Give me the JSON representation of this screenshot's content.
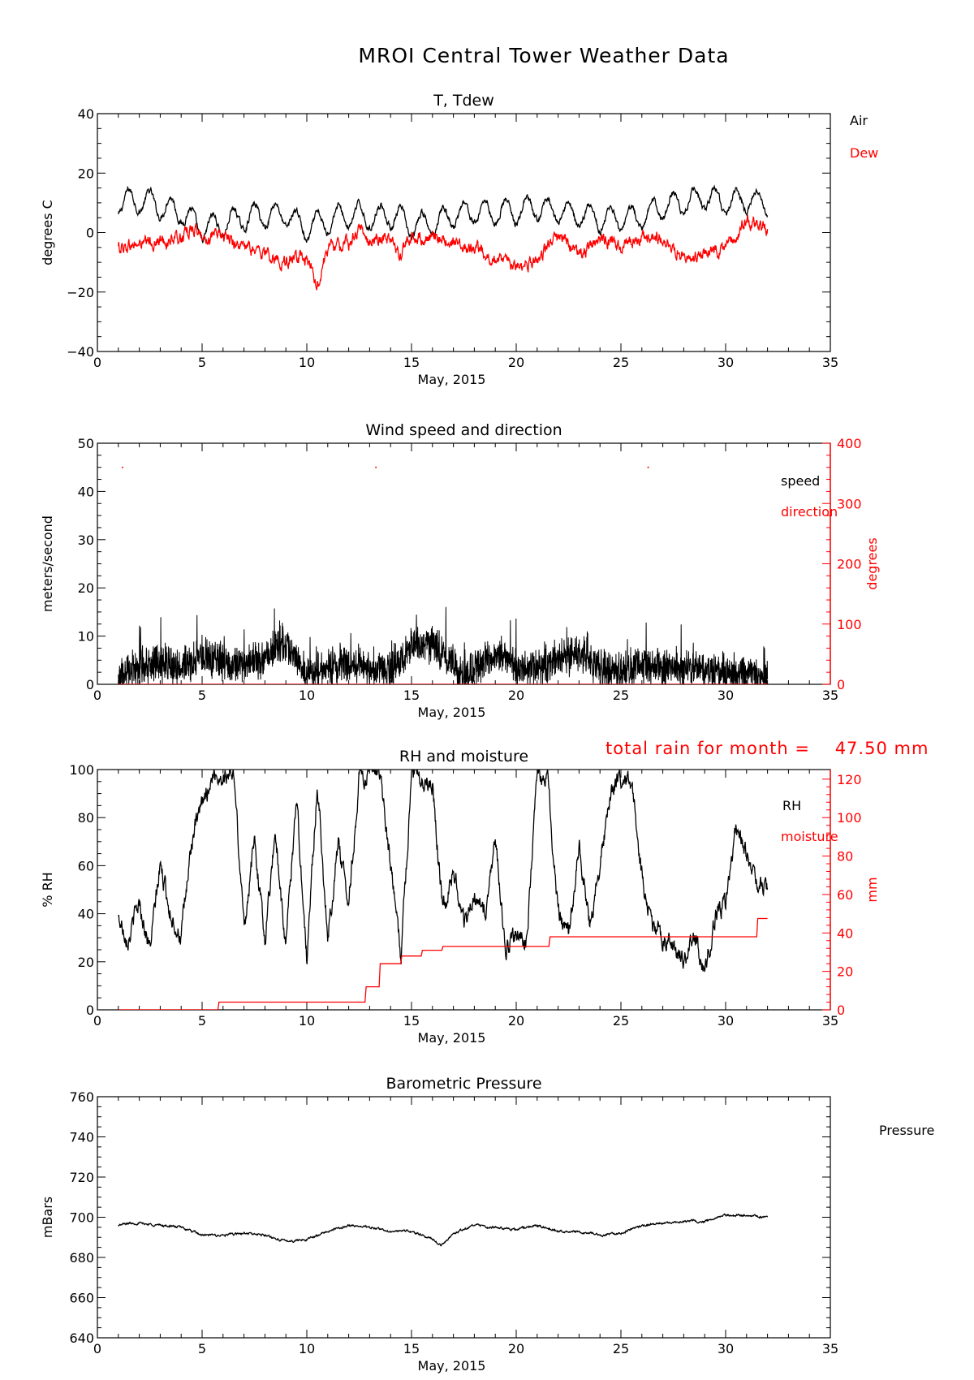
{
  "page": {
    "title": "MROI Central Tower Weather Data"
  },
  "colors": {
    "primary": "#000000",
    "secondary": "#ff0000"
  },
  "chart_data": [
    {
      "type": "line",
      "title": "T, Tdew",
      "xlabel": "May, 2015",
      "ylabel": "degrees C",
      "xlim": [
        0,
        35
      ],
      "ylim": [
        -40,
        40
      ],
      "xticks": [
        "0",
        "5",
        "10",
        "15",
        "20",
        "25",
        "30",
        "35"
      ],
      "yticks": [
        "-40",
        "-20",
        "0",
        "20",
        "40"
      ],
      "legend": [
        "Air",
        "Dew"
      ],
      "series": [
        {
          "name": "Air",
          "color": "#000000",
          "axis": "left",
          "kind": "daily",
          "x": [
            1,
            2,
            3,
            4,
            5,
            6,
            7,
            8,
            9,
            10,
            11,
            12,
            13,
            14,
            15,
            16,
            17,
            18,
            19,
            20,
            21,
            22,
            23,
            24,
            25,
            26,
            27,
            28,
            29,
            30,
            31,
            32
          ],
          "values": [
            10,
            11,
            9,
            7,
            1,
            3,
            5,
            6,
            6,
            1,
            4,
            6,
            5,
            6,
            2,
            3,
            6,
            7,
            7,
            7,
            8,
            7,
            6,
            5,
            4,
            5,
            9,
            10,
            12,
            10,
            11,
            10
          ],
          "amplitude": 4,
          "noise": 0.8
        },
        {
          "name": "Dew",
          "color": "#ff0000",
          "axis": "left",
          "kind": "noise",
          "x": [
            1,
            2,
            3,
            4,
            4.5,
            5,
            6,
            7,
            8,
            9,
            10,
            10.5,
            11,
            12,
            12.5,
            13,
            14,
            14.5,
            15,
            16,
            17,
            18,
            19,
            20,
            21,
            22,
            23,
            24,
            25,
            26,
            27,
            28,
            29,
            30,
            31,
            32
          ],
          "values": [
            -5,
            -4,
            -3,
            -2,
            2,
            -2,
            -1,
            -5,
            -7,
            -10,
            -9,
            -18,
            -5,
            -4,
            1,
            -2,
            -2,
            -8,
            -2,
            -1,
            -3,
            -6,
            -8,
            -12,
            -10,
            0,
            -7,
            -3,
            -4,
            -2,
            -2,
            -9,
            -7,
            -5,
            4,
            1
          ],
          "noise": 1.6
        }
      ]
    },
    {
      "type": "line",
      "title": "Wind speed and direction",
      "xlabel": "May, 2015",
      "ylabel": "meters/second",
      "ylabel_right": "degrees",
      "xlim": [
        0,
        35
      ],
      "ylim": [
        0,
        50
      ],
      "ylim_right": [
        0,
        400
      ],
      "xticks": [
        "0",
        "5",
        "10",
        "15",
        "20",
        "25",
        "30",
        "35"
      ],
      "yticks": [
        "0",
        "10",
        "20",
        "30",
        "40",
        "50"
      ],
      "yticks_right": [
        "0",
        "100",
        "200",
        "300",
        "400"
      ],
      "legend": [
        "speed",
        "direction"
      ],
      "series": [
        {
          "name": "speed",
          "color": "#000000",
          "axis": "left",
          "kind": "wind",
          "x": [
            1,
            2,
            3,
            4,
            5,
            6,
            7,
            8,
            8.8,
            9.5,
            10,
            11,
            12,
            13,
            14,
            15,
            16,
            17,
            17.5,
            18,
            19,
            20,
            21,
            22,
            23,
            24,
            25,
            26,
            27,
            28,
            29,
            30,
            31,
            32
          ],
          "values": [
            1,
            3,
            4,
            3,
            5,
            4,
            4,
            5,
            8,
            5,
            1,
            3,
            4,
            3,
            3,
            8,
            8,
            4,
            0,
            3,
            6,
            3,
            3,
            5,
            6,
            3,
            2,
            4,
            3,
            3,
            3,
            2,
            2,
            1
          ],
          "noise": 3
        },
        {
          "name": "direction",
          "color": "#ff0000",
          "axis": "right",
          "kind": "flat",
          "x": [
            1,
            32
          ],
          "values": [
            0,
            0
          ],
          "noise": 0
        }
      ],
      "markers": {
        "color": "#ff0000",
        "axis": "right",
        "x": [
          1.2,
          13.3,
          26.3
        ],
        "values": [
          360,
          360,
          360
        ]
      }
    },
    {
      "type": "line",
      "title": "RH and moisture",
      "xlabel": "May, 2015",
      "ylabel": "% RH",
      "ylabel_right": "mm",
      "xlim": [
        0,
        35
      ],
      "ylim": [
        0,
        100
      ],
      "ylim_right": [
        0,
        125
      ],
      "xticks": [
        "0",
        "5",
        "10",
        "15",
        "20",
        "25",
        "30",
        "35"
      ],
      "yticks": [
        "0",
        "20",
        "40",
        "60",
        "80",
        "100"
      ],
      "yticks_right": [
        "0",
        "20",
        "40",
        "60",
        "80",
        "100",
        "120"
      ],
      "legend": [
        "RH",
        "moisture"
      ],
      "annotation": "total rain for month =    47.50 mm",
      "series": [
        {
          "name": "RH",
          "color": "#000000",
          "axis": "left",
          "kind": "noise",
          "x": [
            1,
            1.5,
            2,
            2.5,
            3,
            3.5,
            4,
            4.5,
            5,
            5.5,
            6,
            6.5,
            7,
            7.5,
            8,
            8.5,
            9,
            9.5,
            10,
            10.5,
            11,
            11.5,
            12,
            12.5,
            13,
            13.5,
            14,
            14.5,
            15,
            15.5,
            16,
            16.5,
            17,
            17.5,
            18,
            18.5,
            19,
            19.5,
            20,
            20.5,
            21,
            21.5,
            22,
            22.5,
            23,
            23.5,
            24,
            24.5,
            25,
            25.5,
            26,
            26.5,
            27,
            27.5,
            28,
            28.5,
            29,
            29.5,
            30,
            30.5,
            31,
            31.5,
            32
          ],
          "values": [
            38,
            30,
            45,
            25,
            60,
            40,
            30,
            70,
            85,
            98,
            97,
            99,
            35,
            70,
            30,
            75,
            25,
            90,
            20,
            95,
            30,
            70,
            45,
            97,
            98,
            97,
            60,
            22,
            99,
            97,
            95,
            40,
            60,
            35,
            48,
            38,
            70,
            25,
            30,
            28,
            99,
            95,
            40,
            30,
            70,
            35,
            60,
            90,
            97,
            95,
            55,
            35,
            30,
            25,
            20,
            30,
            15,
            40,
            45,
            75,
            65,
            55,
            50
          ],
          "noise": 3
        },
        {
          "name": "moisture",
          "color": "#ff0000",
          "axis": "right",
          "kind": "step",
          "x": [
            1,
            5,
            5.8,
            12.8,
            13.5,
            14.5,
            15.5,
            16.5,
            21.6,
            22,
            31.5,
            32
          ],
          "values": [
            0,
            0,
            4,
            12,
            24,
            28,
            31,
            33,
            38,
            38,
            47.5,
            47.5
          ],
          "noise": 0
        }
      ]
    },
    {
      "type": "line",
      "title": "Barometric Pressure",
      "xlabel": "May, 2015",
      "ylabel": "mBars",
      "xlim": [
        0,
        35
      ],
      "ylim": [
        640,
        760
      ],
      "xticks": [
        "0",
        "5",
        "10",
        "15",
        "20",
        "25",
        "30",
        "35"
      ],
      "yticks": [
        "640",
        "660",
        "680",
        "700",
        "720",
        "740",
        "760"
      ],
      "legend": [
        "Pressure"
      ],
      "series": [
        {
          "name": "Pressure",
          "color": "#000000",
          "axis": "left",
          "kind": "noise",
          "x": [
            1,
            1.5,
            2,
            3,
            4,
            5,
            6,
            7,
            8,
            9,
            10,
            11,
            12,
            13,
            14,
            15,
            16,
            16.4,
            17,
            18,
            19,
            20,
            21,
            22,
            23,
            24,
            25,
            26,
            27,
            28,
            29,
            30,
            31,
            32
          ],
          "values": [
            696,
            697,
            697,
            696,
            695,
            691,
            691,
            692,
            691,
            688,
            689,
            693,
            696,
            695,
            693,
            693,
            689,
            686,
            692,
            696,
            695,
            694,
            696,
            693,
            693,
            691,
            692,
            696,
            697,
            698,
            698,
            701,
            701,
            700
          ],
          "noise": 0.4
        }
      ]
    }
  ]
}
